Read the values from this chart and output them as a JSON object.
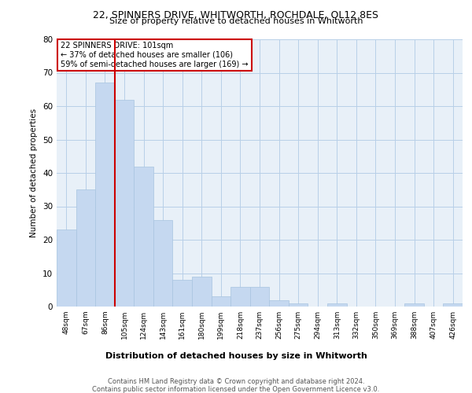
{
  "title1": "22, SPINNERS DRIVE, WHITWORTH, ROCHDALE, OL12 8ES",
  "title2": "Size of property relative to detached houses in Whitworth",
  "xlabel": "Distribution of detached houses by size in Whitworth",
  "ylabel": "Number of detached properties",
  "categories": [
    "48sqm",
    "67sqm",
    "86sqm",
    "105sqm",
    "124sqm",
    "143sqm",
    "161sqm",
    "180sqm",
    "199sqm",
    "218sqm",
    "237sqm",
    "256sqm",
    "275sqm",
    "294sqm",
    "313sqm",
    "332sqm",
    "350sqm",
    "369sqm",
    "388sqm",
    "407sqm",
    "426sqm"
  ],
  "values": [
    23,
    35,
    67,
    62,
    42,
    26,
    8,
    9,
    3,
    6,
    6,
    2,
    1,
    0,
    1,
    0,
    0,
    0,
    1,
    0,
    1
  ],
  "bar_color": "#c5d8f0",
  "bar_edge_color": "#a8c4e0",
  "grid_color": "#b8cfe8",
  "bg_color": "#e8f0f8",
  "annotation_text1": "22 SPINNERS DRIVE: 101sqm",
  "annotation_text2": "← 37% of detached houses are smaller (106)",
  "annotation_text3": "59% of semi-detached houses are larger (169) →",
  "annotation_box_color": "#ffffff",
  "annotation_border_color": "#cc0000",
  "footer": "Contains HM Land Registry data © Crown copyright and database right 2024.\nContains public sector information licensed under the Open Government Licence v3.0.",
  "ylim": [
    0,
    80
  ],
  "red_line_x": 2.5
}
